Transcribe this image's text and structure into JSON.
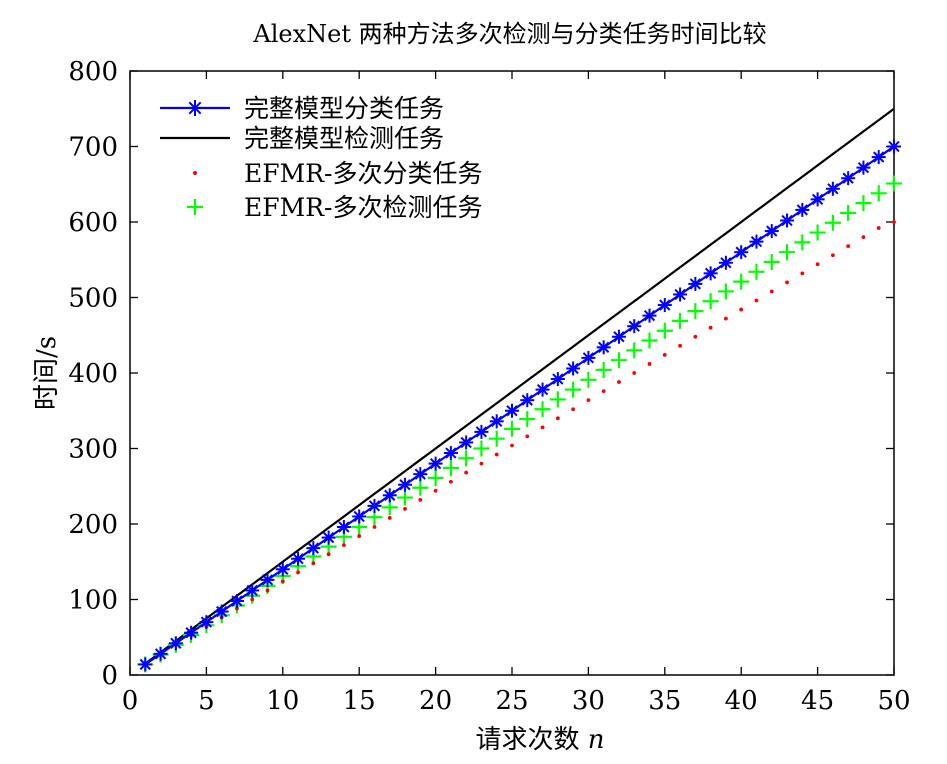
{
  "chart_data": {
    "type": "line",
    "title": "AlexNet 两种方法多次检测与分类任务时间比较",
    "xlabel": "请求次数",
    "xlabel_var": "n",
    "ylabel": "时间/s",
    "xlim": [
      0,
      50
    ],
    "ylim": [
      0,
      800
    ],
    "xticks": [
      0,
      5,
      10,
      15,
      20,
      25,
      30,
      35,
      40,
      45,
      50
    ],
    "yticks": [
      0,
      100,
      200,
      300,
      400,
      500,
      600,
      700,
      800
    ],
    "grid": false,
    "legend_position": "top-left",
    "x": [
      1,
      2,
      3,
      4,
      5,
      6,
      7,
      8,
      9,
      10,
      11,
      12,
      13,
      14,
      15,
      16,
      17,
      18,
      19,
      20,
      21,
      22,
      23,
      24,
      25,
      26,
      27,
      28,
      29,
      30,
      31,
      32,
      33,
      34,
      35,
      36,
      37,
      38,
      39,
      40,
      41,
      42,
      43,
      44,
      45,
      46,
      47,
      48,
      49,
      50
    ],
    "series": [
      {
        "name": "完整模型分类任务",
        "style": "line-star",
        "color": "#0000ff",
        "values": [
          14,
          28,
          42,
          56,
          70,
          84,
          98,
          112,
          126,
          140,
          154,
          168,
          182,
          196,
          210,
          224,
          238,
          252,
          266,
          280,
          294,
          308,
          322,
          336,
          350,
          364,
          378,
          392,
          406,
          420,
          434,
          448,
          462,
          476,
          490,
          504,
          518,
          532,
          546,
          560,
          574,
          588,
          602,
          616,
          630,
          644,
          658,
          672,
          686,
          700
        ]
      },
      {
        "name": "完整模型检测任务",
        "style": "line",
        "color": "#000000",
        "values": [
          15,
          30,
          45,
          60,
          75,
          90,
          105,
          120,
          135,
          150,
          165,
          180,
          195,
          210,
          225,
          240,
          255,
          270,
          285,
          300,
          315,
          330,
          345,
          360,
          375,
          390,
          405,
          420,
          435,
          450,
          465,
          480,
          495,
          510,
          525,
          540,
          555,
          570,
          585,
          600,
          615,
          630,
          645,
          660,
          675,
          690,
          705,
          720,
          735,
          750
        ]
      },
      {
        "name": "EFMR-多次分类任务",
        "style": "dot",
        "color": "#ff0000",
        "values": [
          15,
          28,
          40,
          52,
          64,
          76,
          88,
          100,
          112,
          124,
          136,
          148,
          160,
          172,
          184,
          196,
          208,
          220,
          232,
          244,
          256,
          268,
          280,
          292,
          304,
          316,
          328,
          340,
          352,
          364,
          376,
          388,
          400,
          412,
          424,
          436,
          448,
          460,
          472,
          484,
          496,
          508,
          520,
          532,
          544,
          556,
          568,
          580,
          592,
          600
        ]
      },
      {
        "name": "EFMR-多次检测任务",
        "style": "plus",
        "color": "#00ff00",
        "values": [
          14,
          27,
          40,
          53,
          66,
          79,
          92,
          105,
          118,
          131,
          144,
          157,
          170,
          183,
          196,
          209,
          222,
          235,
          248,
          261,
          274,
          287,
          300,
          313,
          326,
          339,
          352,
          365,
          378,
          391,
          404,
          417,
          430,
          443,
          456,
          469,
          482,
          495,
          508,
          521,
          534,
          547,
          560,
          573,
          586,
          599,
          612,
          625,
          638,
          651
        ]
      }
    ]
  }
}
